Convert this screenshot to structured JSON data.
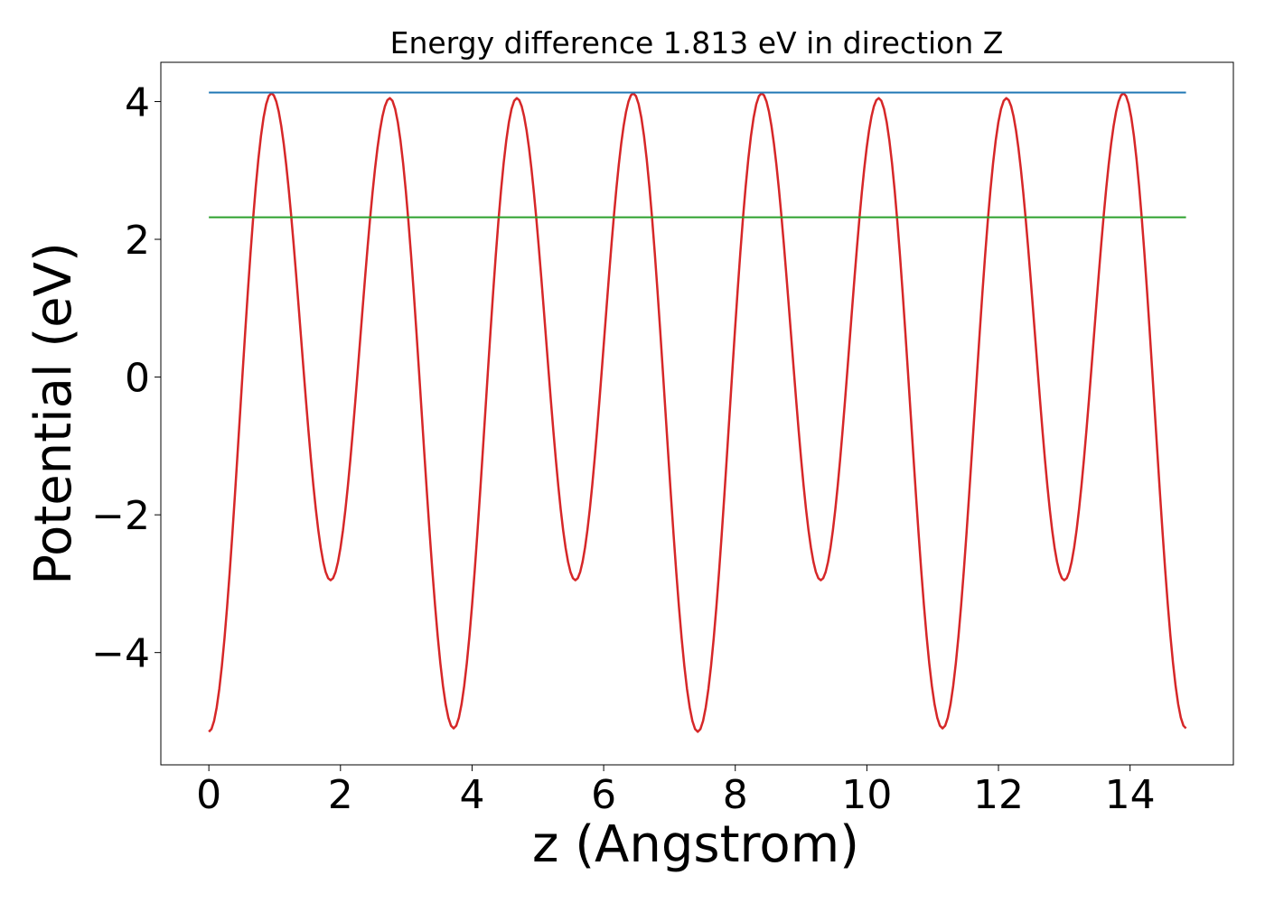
{
  "chart_data": {
    "type": "line",
    "title": "Energy difference 1.813 eV in direction Z",
    "xlabel": "z (Angstrom)",
    "ylabel": "Potential (eV)",
    "xlim": [
      -0.73,
      15.57
    ],
    "ylim": [
      -5.63,
      4.57
    ],
    "grid": false,
    "legend": "none",
    "xticks": [
      0,
      2,
      4,
      6,
      8,
      10,
      12,
      14
    ],
    "xtick_labels": [
      "0",
      "2",
      "4",
      "6",
      "8",
      "10",
      "12",
      "14"
    ],
    "yticks": [
      -4,
      -2,
      0,
      2,
      4
    ],
    "ytick_labels": [
      "−4",
      "−2",
      "0",
      "2",
      "4"
    ],
    "series": [
      {
        "color": "#d62728",
        "x": [
          0.0,
          0.95,
          1.85,
          2.75,
          3.72,
          4.68,
          5.57,
          6.45,
          7.43,
          8.4,
          9.3,
          10.18,
          11.15,
          12.12,
          13.0,
          13.9,
          14.85
        ],
        "y": [
          -5.15,
          4.12,
          -2.95,
          4.05,
          -5.1,
          4.05,
          -2.95,
          4.12,
          -5.15,
          4.12,
          -2.95,
          4.05,
          -5.1,
          4.05,
          -2.95,
          4.12,
          -5.1
        ]
      },
      {
        "color": "#1f77b4",
        "x": [
          0.0,
          14.85
        ],
        "y": [
          4.13,
          4.13
        ]
      },
      {
        "color": "#2ca02c",
        "x": [
          0.0,
          14.85
        ],
        "y": [
          2.32,
          2.32
        ]
      }
    ]
  }
}
